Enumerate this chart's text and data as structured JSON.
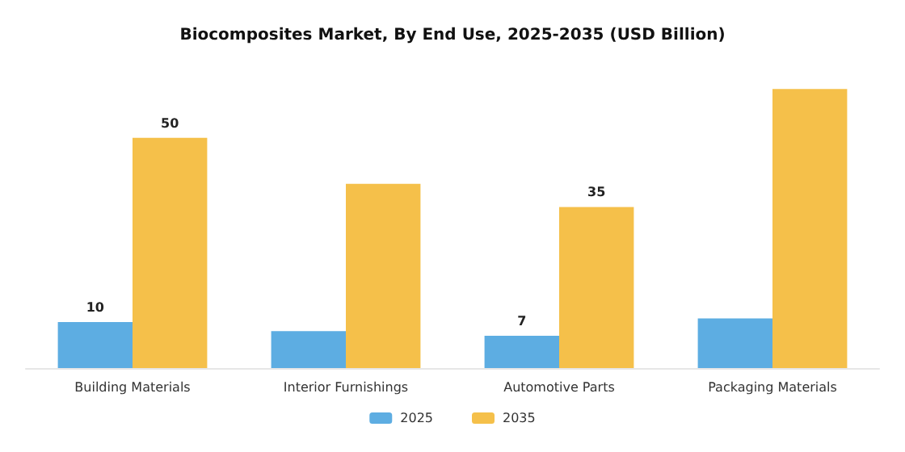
{
  "chart_data": {
    "type": "bar",
    "title": "Biocomposites Market, By End Use, 2025-2035 (USD Billion)",
    "categories": [
      "Building Materials",
      "Interior Furnishings",
      "Automotive Parts",
      "Packaging Materials"
    ],
    "series": [
      {
        "name": "2025",
        "color": "#5dade2",
        "values": [
          10,
          8,
          7,
          10.8
        ],
        "value_labels": [
          "10",
          null,
          "7",
          null
        ]
      },
      {
        "name": "2035",
        "color": "#f5c04a",
        "values": [
          50,
          40,
          35,
          60.6
        ],
        "value_labels": [
          "50",
          null,
          "35",
          null
        ]
      }
    ],
    "legend": "bottom",
    "grid": false
  }
}
